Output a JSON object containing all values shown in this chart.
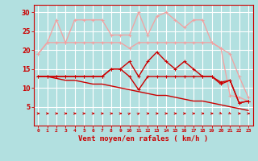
{
  "title": "",
  "xlabel": "Vent moyen/en rafales ( km/h )",
  "background_color": "#b2e0e0",
  "grid_color": "#ffffff",
  "x": [
    0,
    1,
    2,
    3,
    4,
    5,
    6,
    7,
    8,
    9,
    10,
    11,
    12,
    13,
    14,
    15,
    16,
    17,
    18,
    19,
    20,
    21,
    22,
    23
  ],
  "line1": [
    19,
    22,
    22,
    22,
    22,
    22,
    22,
    22,
    22,
    22,
    20.5,
    22,
    22,
    22,
    22,
    22,
    22,
    22,
    22,
    22,
    20.5,
    19,
    13,
    7.5
  ],
  "line2": [
    19,
    22,
    28,
    22,
    28,
    28,
    28,
    28,
    24,
    24,
    24,
    30,
    24,
    29,
    30,
    28,
    26,
    28,
    28,
    22,
    20.5,
    8,
    7.5,
    6.5
  ],
  "line3": [
    13,
    13,
    13,
    13,
    13,
    13,
    13,
    13,
    15,
    15,
    13,
    9.5,
    13,
    13,
    13,
    13,
    13,
    13,
    13,
    13,
    11,
    12,
    6,
    6.5
  ],
  "line4": [
    13,
    13,
    13,
    13,
    13,
    13,
    13,
    13,
    15,
    15,
    17,
    13,
    17,
    19.5,
    17,
    15,
    17,
    15,
    13,
    13,
    11.5,
    12,
    6,
    6.5
  ],
  "line5": [
    13,
    13,
    12.5,
    12,
    12,
    11.5,
    11,
    11,
    10.5,
    10,
    9.5,
    9,
    8.5,
    8,
    8,
    7.5,
    7,
    6.5,
    6.5,
    6,
    5.5,
    5,
    4.5,
    4
  ],
  "color_light": "#f4a0a0",
  "color_dark": "#cc0000",
  "ylim": [
    0,
    32
  ],
  "yticks": [
    5,
    10,
    15,
    20,
    25,
    30
  ],
  "arrow_dirs": [
    0,
    0,
    0,
    0,
    0,
    0,
    0,
    0,
    0,
    0,
    45,
    45,
    0,
    0,
    0,
    0,
    0,
    0,
    0,
    0,
    -45,
    -45,
    0,
    0
  ]
}
